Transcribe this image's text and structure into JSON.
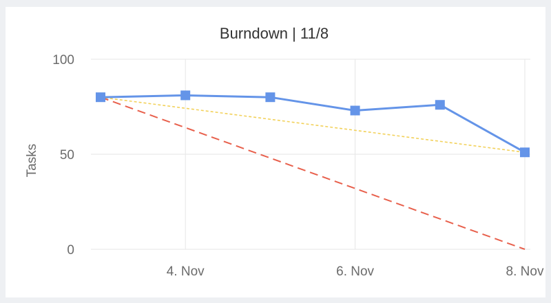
{
  "chart_data": {
    "type": "line",
    "title": "Burndown | 11/8",
    "xlabel": "",
    "ylabel": "Tasks",
    "x": [
      "3. Nov",
      "4. Nov",
      "5. Nov",
      "6. Nov",
      "7. Nov",
      "8. Nov"
    ],
    "x_tick_labels": [
      "4. Nov",
      "6. Nov",
      "8. Nov"
    ],
    "y_ticks": [
      0,
      50,
      100
    ],
    "ylim": [
      0,
      100
    ],
    "grid": true,
    "series": [
      {
        "values": [
          80,
          81,
          80,
          73,
          76,
          51
        ],
        "color": "#6494e8",
        "style": "solid",
        "marker": "square"
      },
      {
        "values": [
          80,
          null,
          null,
          null,
          null,
          0
        ],
        "color": "#e8604c",
        "style": "dashed",
        "marker": "none"
      },
      {
        "values": [
          80,
          null,
          null,
          null,
          null,
          51
        ],
        "color": "#f2d15a",
        "style": "dotted",
        "marker": "none"
      }
    ]
  }
}
